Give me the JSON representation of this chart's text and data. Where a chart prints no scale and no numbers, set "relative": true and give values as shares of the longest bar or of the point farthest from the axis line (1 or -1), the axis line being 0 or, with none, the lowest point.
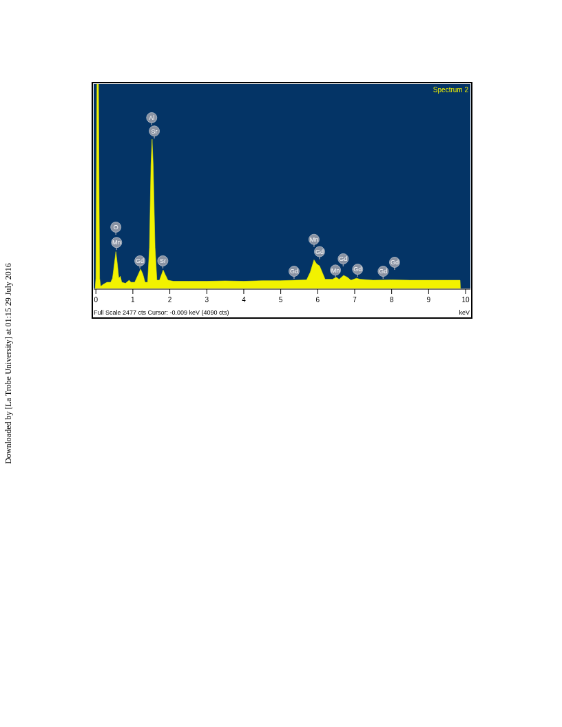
{
  "chart_data": {
    "type": "area",
    "title": "Spectrum 2",
    "xlabel": "keV",
    "relative": true,
    "color": "#f2f200",
    "xlim": [
      -0.06,
      10.13
    ],
    "xticks": [
      0,
      1,
      2,
      3,
      4,
      5,
      6,
      7,
      8,
      9,
      10
    ],
    "x": [
      -0.02,
      0.0,
      0.03,
      0.07,
      0.1,
      0.13,
      0.2,
      0.3,
      0.4,
      0.45,
      0.5,
      0.54,
      0.58,
      0.62,
      0.66,
      0.7,
      0.8,
      0.9,
      0.95,
      1.05,
      1.15,
      1.21,
      1.27,
      1.33,
      1.4,
      1.45,
      1.49,
      1.52,
      1.55,
      1.6,
      1.65,
      1.72,
      1.78,
      1.82,
      1.87,
      1.95,
      2.1,
      2.5,
      3,
      3.5,
      4,
      4.5,
      5,
      5.4,
      5.7,
      5.8,
      5.9,
      5.97,
      6.05,
      6.12,
      6.2,
      6.4,
      6.5,
      6.58,
      6.7,
      6.8,
      6.9,
      7.05,
      7.15,
      7.5,
      8,
      8.5,
      9,
      9.5,
      9.85,
      9.86
    ],
    "values": [
      0,
      0.05,
      1,
      1,
      0.05,
      0.01,
      0.02,
      0.03,
      0.03,
      0.05,
      0.12,
      0.18,
      0.12,
      0.05,
      0.06,
      0.03,
      0.025,
      0.04,
      0.03,
      0.03,
      0.07,
      0.094,
      0.07,
      0.03,
      0.03,
      0.2,
      0.6,
      0.73,
      0.6,
      0.2,
      0.04,
      0.04,
      0.07,
      0.09,
      0.07,
      0.04,
      0.035,
      0.035,
      0.035,
      0.037,
      0.035,
      0.038,
      0.038,
      0.04,
      0.042,
      0.08,
      0.14,
      0.12,
      0.11,
      0.08,
      0.045,
      0.045,
      0.055,
      0.045,
      0.064,
      0.055,
      0.04,
      0.05,
      0.045,
      0.04,
      0.042,
      0.04,
      0.04,
      0.04,
      0.04,
      0
    ],
    "annotations": [
      "Full Scale 2477 cts  Cursor: -0.009 keV (4090 cts)",
      "Downloaded by [La Trobe University] at 01:15 29 July 2016",
      {
        "text": "Al",
        "x": 1.51,
        "y": 0.835
      },
      {
        "text": "Sr",
        "x": 1.58,
        "y": 0.77
      },
      {
        "text": "O",
        "x": 0.54,
        "y": 0.3
      },
      {
        "text": "Mn",
        "x": 0.56,
        "y": 0.225
      },
      {
        "text": "Gd",
        "x": 1.19,
        "y": 0.135
      },
      {
        "text": "Sr",
        "x": 1.81,
        "y": 0.135
      },
      {
        "text": "Gd",
        "x": 5.36,
        "y": 0.084
      },
      {
        "text": "Mn",
        "x": 5.9,
        "y": 0.24
      },
      {
        "text": "Gd",
        "x": 6.05,
        "y": 0.18
      },
      {
        "text": "Gd",
        "x": 6.69,
        "y": 0.145
      },
      {
        "text": "Mn",
        "x": 6.48,
        "y": 0.09
      },
      {
        "text": "Gd",
        "x": 7.08,
        "y": 0.094
      },
      {
        "text": "Gd",
        "x": 7.77,
        "y": 0.084
      },
      {
        "text": "Gd",
        "x": 8.08,
        "y": 0.128
      }
    ]
  }
}
